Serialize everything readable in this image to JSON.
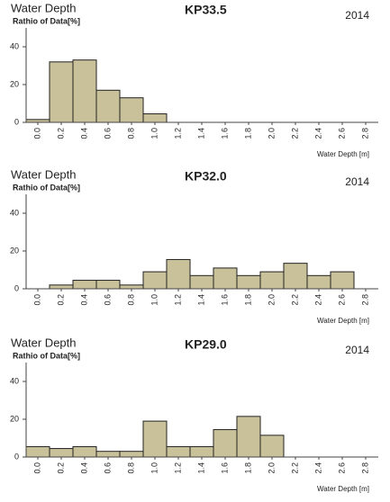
{
  "chart_data": [
    {
      "type": "bar",
      "title": "KP33.5",
      "header": "Water Depth",
      "y_label": "Rathio of Data[%]",
      "year": "2014",
      "x_label": "Water Depth [m]",
      "categories": [
        "0.0",
        "0.2",
        "0.4",
        "0.6",
        "0.8",
        "1.0",
        "1.2",
        "1.4",
        "1.6",
        "1.8",
        "2.0",
        "2.2",
        "2.4",
        "2.6",
        "2.8"
      ],
      "values": [
        1.5,
        32,
        33,
        17,
        13,
        4.5,
        0,
        0,
        0,
        0,
        0,
        0,
        0,
        0,
        0
      ],
      "color": "#c9c19a",
      "ylim": [
        0,
        50
      ],
      "yticks": [
        0,
        20,
        40
      ]
    },
    {
      "type": "bar",
      "title": "KP32.0",
      "header": "Water Depth",
      "y_label": "Rathio of Data[%]",
      "year": "2014",
      "x_label": "Water Depth [m]",
      "categories": [
        "0.0",
        "0.2",
        "0.4",
        "0.6",
        "0.8",
        "1.0",
        "1.2",
        "1.4",
        "1.6",
        "1.8",
        "2.0",
        "2.2",
        "2.4",
        "2.6",
        "2.8"
      ],
      "values": [
        0,
        2,
        4.5,
        4.5,
        2,
        9,
        15.5,
        7,
        11,
        7,
        9,
        13.5,
        7,
        9,
        0
      ],
      "color": "#c9c19a",
      "ylim": [
        0,
        50
      ],
      "yticks": [
        0,
        20,
        40
      ]
    },
    {
      "type": "bar",
      "title": "KP29.0",
      "header": "Water Depth",
      "y_label": "Rathio of Data[%]",
      "year": "2014",
      "x_label": "Water Depth [m]",
      "categories": [
        "0.0",
        "0.2",
        "0.4",
        "0.6",
        "0.8",
        "1.0",
        "1.2",
        "1.4",
        "1.6",
        "1.8",
        "2.0",
        "2.2",
        "2.4",
        "2.6",
        "2.8"
      ],
      "values": [
        5.5,
        4.5,
        5.5,
        3,
        3,
        19,
        5.5,
        5.5,
        14.5,
        21.5,
        11.5,
        0,
        0,
        0,
        0
      ],
      "color": "#c9c19a",
      "ylim": [
        0,
        50
      ],
      "yticks": [
        0,
        20,
        40
      ]
    }
  ]
}
